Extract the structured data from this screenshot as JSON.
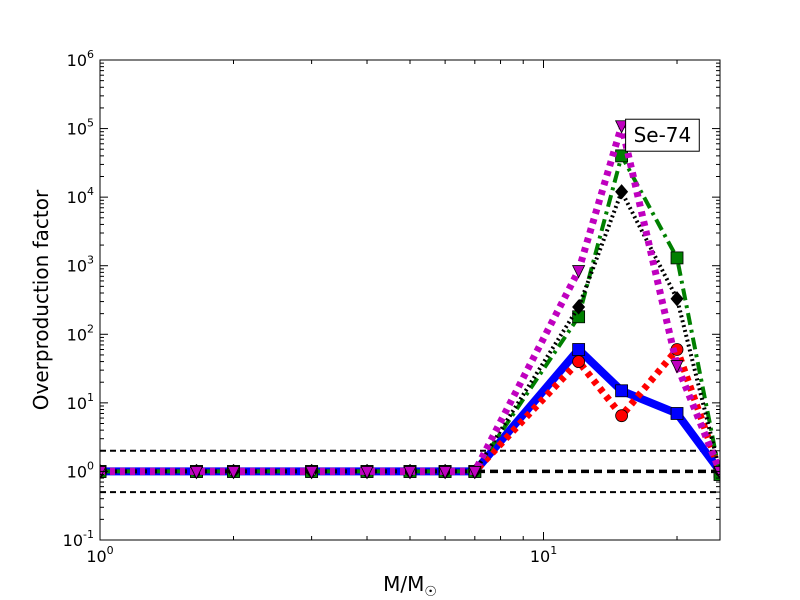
{
  "chart_data": {
    "type": "line",
    "title": "",
    "xlabel": "M/M",
    "xlabel_sub": "☉",
    "ylabel": "Overproduction factor",
    "xscale": "log",
    "yscale": "log",
    "xlim": [
      1,
      25
    ],
    "ylim": [
      0.1,
      1000000
    ],
    "x_ticks": [
      {
        "value": 1,
        "base": "10",
        "exp": "0"
      },
      {
        "value": 10,
        "base": "10",
        "exp": "1"
      }
    ],
    "y_ticks": [
      {
        "value": 0.1,
        "base": "10",
        "exp": "-1"
      },
      {
        "value": 1,
        "base": "10",
        "exp": "0"
      },
      {
        "value": 10,
        "base": "10",
        "exp": "1"
      },
      {
        "value": 100,
        "base": "10",
        "exp": "2"
      },
      {
        "value": 1000,
        "base": "10",
        "exp": "3"
      },
      {
        "value": 10000,
        "base": "10",
        "exp": "4"
      },
      {
        "value": 100000,
        "base": "10",
        "exp": "5"
      },
      {
        "value": 1000000,
        "base": "10",
        "exp": "6"
      }
    ],
    "hlines": [
      {
        "y": 2,
        "style": "dashed",
        "color": "#000000"
      },
      {
        "y": 1,
        "style": "dashed-thick",
        "color": "#000000"
      },
      {
        "y": 0.5,
        "style": "dashed",
        "color": "#000000"
      }
    ],
    "annotation": {
      "text": "Se-74",
      "x": 15,
      "y": 80000
    },
    "series": [
      {
        "style": "solid",
        "color": "#0000ff",
        "marker": "square",
        "x": [
          1,
          1.65,
          2,
          3,
          4,
          5,
          6,
          7,
          12,
          15,
          20,
          25
        ],
        "y": [
          1,
          1,
          1,
          1,
          1,
          1,
          1,
          1,
          60,
          15,
          7,
          1
        ]
      },
      {
        "style": "dotted",
        "color": "#ff0000",
        "marker": "circle",
        "x": [
          1,
          1.65,
          2,
          3,
          4,
          5,
          6,
          7,
          12,
          15,
          20,
          25
        ],
        "y": [
          1,
          1,
          1,
          1,
          1,
          1,
          1,
          1,
          40,
          6.5,
          60,
          1
        ]
      },
      {
        "style": "dashdot",
        "color": "#008000",
        "marker": "square",
        "x": [
          1,
          1.65,
          2,
          3,
          4,
          5,
          6,
          7,
          12,
          15,
          20,
          25
        ],
        "y": [
          1,
          1,
          1,
          1,
          1,
          1,
          1,
          1,
          180,
          40000,
          1300,
          0.9
        ]
      },
      {
        "style": "dotted-fine",
        "color": "#000000",
        "marker": "diamond",
        "x": [
          1,
          1.65,
          2,
          3,
          4,
          5,
          6,
          7,
          12,
          15,
          20,
          25
        ],
        "y": [
          1,
          1,
          1,
          1,
          1,
          1,
          1,
          1,
          250,
          12000,
          330,
          1
        ]
      },
      {
        "style": "dotted",
        "color": "#bf00bf",
        "marker": "triangle-down",
        "x": [
          1,
          1.65,
          2,
          3,
          4,
          5,
          6,
          7,
          12,
          15,
          20,
          25
        ],
        "y": [
          1,
          1,
          1,
          1,
          1,
          1,
          1,
          1,
          850,
          110000,
          35,
          1
        ]
      }
    ]
  }
}
